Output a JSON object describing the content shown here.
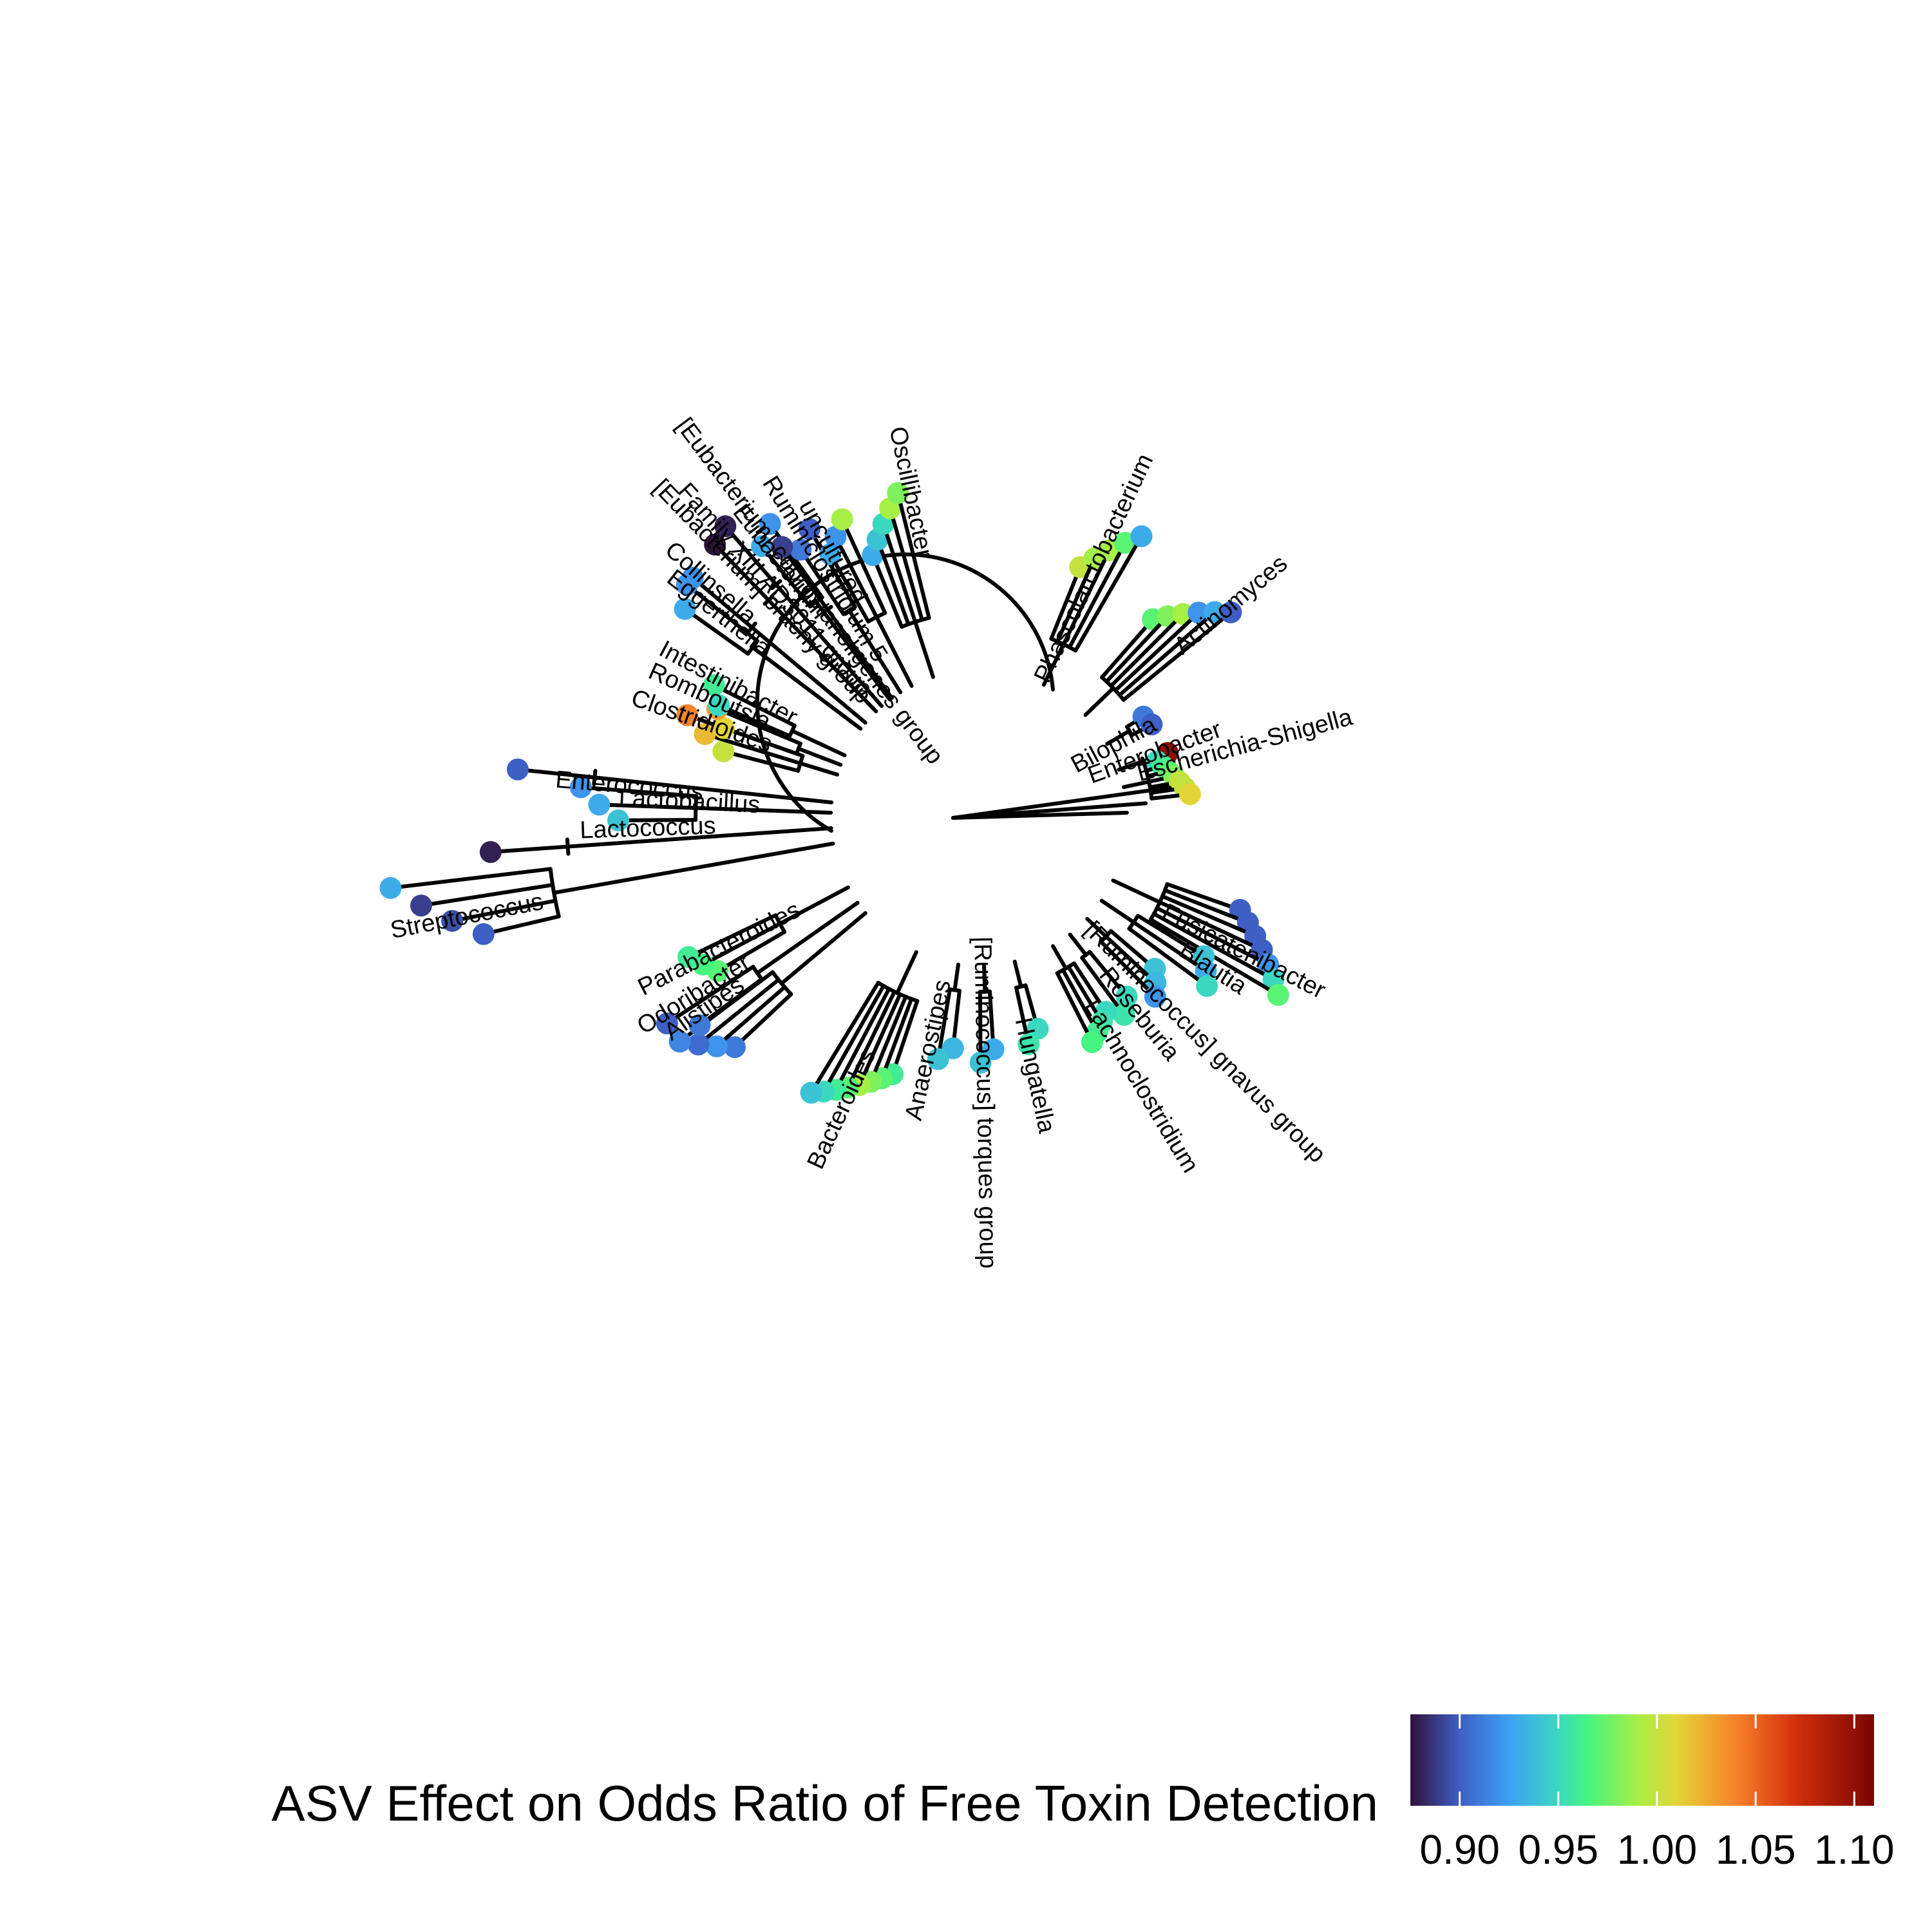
{
  "chart_data": {
    "type": "circular-phylogenetic-tree",
    "title": "",
    "legend": {
      "title": "ASV Effect on Odds Ratio of Free Toxin Detection",
      "placement": "bottom",
      "ticks": [
        "0.90",
        "0.95",
        "1.00",
        "1.05",
        "1.10"
      ],
      "range": [
        0.875,
        1.11
      ]
    },
    "colormap": [
      {
        "value": 0.875,
        "color": "#30123b"
      },
      {
        "value": 0.9,
        "color": "#3e5fc4"
      },
      {
        "value": 0.925,
        "color": "#3ea0f5"
      },
      {
        "value": 0.95,
        "color": "#3bd8c0"
      },
      {
        "value": 0.965,
        "color": "#45f580"
      },
      {
        "value": 0.99,
        "color": "#a6ef45"
      },
      {
        "value": 1.01,
        "color": "#e2d537"
      },
      {
        "value": 1.04,
        "color": "#f9822a"
      },
      {
        "value": 1.07,
        "color": "#d2300b"
      },
      {
        "value": 1.11,
        "color": "#7a0403"
      }
    ],
    "clades": [
      {
        "genus": "Phascolarctobacterium",
        "angle": -64,
        "r0": 420,
        "r1": 505,
        "values": [
          1.0,
          0.99,
          0.99,
          0.97,
          0.93
        ]
      },
      {
        "genus": "Actinomyces",
        "angle": -44,
        "r0": 410,
        "r1": 505,
        "values": [
          0.97,
          0.98,
          0.99,
          0.92,
          0.93,
          0.9
        ]
      },
      {
        "genus": "Bilophila",
        "angle": -30,
        "r0": 300,
        "r1": 305,
        "values": [
          0.91,
          0.9
        ]
      },
      {
        "genus": "Enterobacter",
        "angle": -19,
        "r0": 310,
        "r1": 320,
        "values": [
          1.1
        ]
      },
      {
        "genus": "Escherichia-Shigella",
        "angle": -12,
        "r0": 290,
        "r1": 330,
        "values": [
          0.95,
          0.96,
          0.97,
          0.98,
          1.0,
          1.0,
          1.01
        ]
      },
      {
        "genus": "Fusicatenibacter",
        "angle": 25,
        "r0": 430,
        "r1": 540,
        "values": [
          0.9,
          0.9,
          0.9,
          0.9,
          0.92,
          0.95,
          0.97
        ]
      },
      {
        "genus": "Blautia",
        "angle": 34,
        "r0": 410,
        "r1": 440,
        "values": [
          0.94,
          0.93,
          0.95
        ]
      },
      {
        "genus": "[Ruminococcus] gnavus group",
        "angle": 43,
        "r0": 360,
        "r1": 390,
        "values": [
          0.94,
          0.935,
          0.92
        ]
      },
      {
        "genus": "Roseburia",
        "angle": 52,
        "r0": 360,
        "r1": 380,
        "values": [
          0.95,
          0.955
        ]
      },
      {
        "genus": "Lachnoclostridium",
        "angle": 60,
        "r0": 360,
        "r1": 390,
        "values": [
          0.95,
          0.955,
          0.96,
          0.965
        ]
      },
      {
        "genus": "Hungatella",
        "angle": 76,
        "r0": 340,
        "r1": 360,
        "values": [
          0.95,
          0.955
        ]
      },
      {
        "genus": "[Ruminococcus] torques group",
        "angle": 88,
        "r0": 360,
        "r1": 380,
        "values": [
          0.93,
          0.94
        ]
      },
      {
        "genus": "Anaerostipes",
        "angle": 98,
        "r0": 360,
        "r1": 380,
        "values": [
          0.935,
          0.94
        ]
      },
      {
        "genus": "Bacteroides",
        "angle": 115,
        "r0": 420,
        "r1": 500,
        "values": [
          0.96,
          0.97,
          0.98,
          0.99,
          0.97,
          0.96,
          0.95,
          0.94
        ]
      },
      {
        "genus": "Alistipes",
        "angle": 140,
        "r0": 520,
        "r1": 580,
        "values": [
          0.91,
          0.92,
          0.905,
          0.915
        ]
      },
      {
        "genus": "Odoribacter",
        "angle": 145,
        "r0": 540,
        "r1": 580,
        "values": [
          0.91,
          0.9
        ]
      },
      {
        "genus": "Parabacteroides",
        "angle": 152,
        "r0": 470,
        "r1": 500,
        "values": [
          0.97,
          0.965,
          0.96
        ]
      },
      {
        "genus": "Streptococcus",
        "angle": 170,
        "r0": 790,
        "r1": 920,
        "values": [
          0.9,
          0.895,
          0.89,
          0.93
        ]
      },
      {
        "genus": "Lactococcus",
        "angle": 176,
        "r0": 760,
        "r1": 780,
        "values": [
          0.88
        ]
      },
      {
        "genus": "Lactobacillus",
        "angle": 182,
        "r0": 560,
        "r1": 620,
        "values": [
          0.94,
          0.93,
          0.92
        ]
      },
      {
        "genus": "Enterococcus",
        "angle": 186,
        "r0": 720,
        "r1": 740,
        "values": [
          0.9
        ]
      },
      {
        "genus": "Clostridioides",
        "angle": 197,
        "r0": 410,
        "r1": 480,
        "values": [
          1.0,
          1.02,
          1.04
        ]
      },
      {
        "genus": "Romboutsia",
        "angle": 201,
        "r0": 420,
        "r1": 440,
        "values": [
          1.01,
          1.03
        ]
      },
      {
        "genus": "Intestinibacter",
        "angle": 205,
        "r0": 440,
        "r1": 460,
        "values": [
          0.95,
          0.96
        ]
      },
      {
        "genus": "Eggerthella",
        "angle": 217,
        "r0": 560,
        "r1": 580,
        "values": [
          0.93,
          0.92
        ]
      },
      {
        "genus": "Collinsella",
        "angle": 220,
        "r0": 580,
        "r1": 600,
        "values": [
          0.92
        ]
      },
      {
        "genus": "[Eubacterium] brachy group",
        "angle": 226,
        "r0": 590,
        "r1": 610,
        "values": [
          0.875
        ]
      },
      {
        "genus": "Family XIII AD3011 group",
        "angle": 229,
        "r0": 600,
        "r1": 610,
        "values": [
          0.88
        ]
      },
      {
        "genus": "[Eubacterium] coprostanoligenes group",
        "angle": 233,
        "r0": 540,
        "r1": 560,
        "values": [
          0.93,
          0.92
        ]
      },
      {
        "genus": "Ruminiclostridium 5",
        "angle": 238,
        "r0": 500,
        "r1": 520,
        "values": [
          0.91,
          0.9
        ]
      },
      {
        "genus": "Eubacterium",
        "angle": 234,
        "r0": 520,
        "r1": 540,
        "values": [
          0.89
        ]
      },
      {
        "genus": "uncultured",
        "angle": 243,
        "r0": 470,
        "r1": 510,
        "values": [
          0.93,
          0.92,
          0.99
        ]
      },
      {
        "genus": "Oscillibacter",
        "angle": 252,
        "r0": 440,
        "r1": 520,
        "values": [
          0.93,
          0.94,
          0.95,
          0.99,
          0.98
        ]
      }
    ],
    "genus_labels": [
      {
        "text": "[Eubacterium] coprostanoligenes group",
        "angle": 233,
        "r": 770,
        "anchor": "start"
      },
      {
        "text": "Ruminiclostridium 5",
        "angle": 238,
        "r": 620,
        "anchor": "start"
      },
      {
        "text": "uncultured",
        "angle": 241,
        "r": 560,
        "anchor": "start"
      },
      {
        "text": "Family XIII AD3011 group",
        "angle": 228,
        "r": 690,
        "anchor": "start"
      },
      {
        "text": "[Eubacterium] brachy group",
        "angle": 226,
        "r": 720,
        "anchor": "start"
      },
      {
        "text": "Eubacterium",
        "angle": 232,
        "r": 610,
        "anchor": "start"
      },
      {
        "text": "Collinsella",
        "angle": 221,
        "r": 640,
        "anchor": "start"
      },
      {
        "text": "Eggerthella",
        "angle": 218,
        "r": 610,
        "anchor": "start"
      },
      {
        "text": "Intestinibacter",
        "angle": 208,
        "r": 560,
        "anchor": "start"
      },
      {
        "text": "Romboutsia",
        "angle": 204,
        "r": 560,
        "anchor": "start"
      },
      {
        "text": "Clostridioides",
        "angle": 199,
        "r": 570,
        "anchor": "start"
      },
      {
        "text": "Oscillibacter",
        "angle": 258,
        "r": 620,
        "anchor": "start"
      },
      {
        "text": "Phascolarctobacterium",
        "angle": -65,
        "r": 620,
        "anchor": "end"
      },
      {
        "text": "Actinomyces",
        "angle": -40,
        "r": 620,
        "anchor": "end"
      },
      {
        "text": "Bilophila",
        "angle": -28,
        "r": 310,
        "anchor": "end"
      },
      {
        "text": "Enterobacter",
        "angle": -20,
        "r": 400,
        "anchor": "end"
      },
      {
        "text": "Escherichia-Shigella",
        "angle": -15,
        "r": 600,
        "anchor": "end"
      },
      {
        "text": "Fusicatenibacter",
        "angle": 27,
        "r": 600,
        "anchor": "end"
      },
      {
        "text": "Blautia",
        "angle": 33,
        "r": 490,
        "anchor": "end"
      },
      {
        "text": "[Ruminococcus] gnavus group",
        "angle": 45,
        "r": 750,
        "anchor": "end"
      },
      {
        "text": "Roseburia",
        "angle": 51,
        "r": 480,
        "anchor": "end"
      },
      {
        "text": "Lachnoclostridium",
        "angle": 59,
        "r": 640,
        "anchor": "end"
      },
      {
        "text": "Hungatella",
        "angle": 78,
        "r": 500,
        "anchor": "end"
      },
      {
        "text": "[Ruminococcus] torques group",
        "angle": 89,
        "r": 700,
        "anchor": "end"
      },
      {
        "text": "Anaerostipes",
        "angle": 102,
        "r": 480,
        "anchor": "start"
      },
      {
        "text": "Bacteroides",
        "angle": 115,
        "r": 600,
        "anchor": "start"
      },
      {
        "text": "Alistipes",
        "angle": 145,
        "r": 590,
        "anchor": "start"
      },
      {
        "text": "Odoribacter",
        "angle": 148,
        "r": 620,
        "anchor": "start"
      },
      {
        "text": "Parabacteroides",
        "angle": 153,
        "r": 590,
        "anchor": "start"
      },
      {
        "text": "Streptococcus",
        "angle": 169,
        "r": 930,
        "anchor": "start"
      },
      {
        "text": "Lactococcus",
        "angle": 178,
        "r": 620,
        "anchor": "start"
      },
      {
        "text": "Lactobacillus",
        "angle": 183,
        "r": 560,
        "anchor": "start"
      },
      {
        "text": "Enterococcus",
        "angle": 185,
        "r": 660,
        "anchor": "start"
      }
    ]
  }
}
